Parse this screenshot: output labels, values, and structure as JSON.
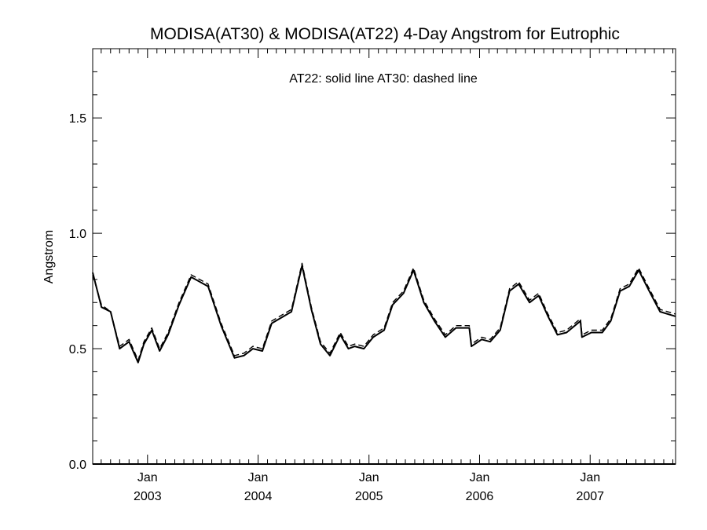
{
  "chart_data": {
    "type": "line",
    "title": "MODISA(AT30) & MODISA(AT22) 4-Day Angstrom for Eutrophic",
    "annotation": "AT22: solid line   AT30: dashed line",
    "xlabel": "",
    "ylabel": "Angstrom",
    "ylim": [
      0.0,
      1.8
    ],
    "xlim": [
      "2002-07-04",
      "2007-10-10"
    ],
    "y_ticks": [
      0.0,
      0.5,
      1.0,
      1.5
    ],
    "y_tick_labels": [
      "0.0",
      "0.5",
      "1.0",
      "1.5"
    ],
    "x_ticks": [
      {
        "date": "2003-01-01",
        "month": "Jan",
        "year": "2003"
      },
      {
        "date": "2004-01-01",
        "month": "Jan",
        "year": "2004"
      },
      {
        "date": "2005-01-01",
        "month": "Jan",
        "year": "2005"
      },
      {
        "date": "2006-01-01",
        "month": "Jan",
        "year": "2006"
      },
      {
        "date": "2007-01-01",
        "month": "Jan",
        "year": "2007"
      }
    ],
    "grid": false,
    "series": [
      {
        "name": "AT22",
        "style": "solid",
        "color": "#000000",
        "points": [
          [
            "2002-07-04",
            0.83
          ],
          [
            "2002-08-02",
            0.68
          ],
          [
            "2002-09-01",
            0.66
          ],
          [
            "2002-10-01",
            0.5
          ],
          [
            "2002-11-01",
            0.53
          ],
          [
            "2002-12-01",
            0.44
          ],
          [
            "2002-12-20",
            0.52
          ],
          [
            "2003-01-15",
            0.58
          ],
          [
            "2003-02-10",
            0.49
          ],
          [
            "2003-03-10",
            0.56
          ],
          [
            "2003-04-15",
            0.69
          ],
          [
            "2003-05-25",
            0.81
          ],
          [
            "2003-07-20",
            0.77
          ],
          [
            "2003-09-01",
            0.6
          ],
          [
            "2003-10-15",
            0.46
          ],
          [
            "2003-11-15",
            0.47
          ],
          [
            "2003-12-15",
            0.5
          ],
          [
            "2004-01-15",
            0.49
          ],
          [
            "2004-02-15",
            0.61
          ],
          [
            "2004-04-20",
            0.66
          ],
          [
            "2004-05-25",
            0.86
          ],
          [
            "2004-06-25",
            0.67
          ],
          [
            "2004-07-25",
            0.52
          ],
          [
            "2004-08-25",
            0.47
          ],
          [
            "2004-09-28",
            0.56
          ],
          [
            "2004-10-25",
            0.5
          ],
          [
            "2004-11-15",
            0.51
          ],
          [
            "2004-12-15",
            0.5
          ],
          [
            "2005-01-15",
            0.55
          ],
          [
            "2005-02-20",
            0.58
          ],
          [
            "2005-03-20",
            0.69
          ],
          [
            "2005-04-25",
            0.74
          ],
          [
            "2005-05-28",
            0.84
          ],
          [
            "2005-07-01",
            0.7
          ],
          [
            "2005-08-05",
            0.62
          ],
          [
            "2005-09-10",
            0.55
          ],
          [
            "2005-10-15",
            0.59
          ],
          [
            "2005-11-28",
            0.59
          ],
          [
            "2005-12-05",
            0.51
          ],
          [
            "2006-01-08",
            0.54
          ],
          [
            "2006-02-05",
            0.53
          ],
          [
            "2006-03-10",
            0.58
          ],
          [
            "2006-04-10",
            0.75
          ],
          [
            "2006-05-10",
            0.78
          ],
          [
            "2006-06-15",
            0.7
          ],
          [
            "2006-07-15",
            0.73
          ],
          [
            "2006-08-15",
            0.64
          ],
          [
            "2006-09-15",
            0.56
          ],
          [
            "2006-10-15",
            0.57
          ],
          [
            "2006-11-30",
            0.62
          ],
          [
            "2006-12-05",
            0.55
          ],
          [
            "2007-01-05",
            0.57
          ],
          [
            "2007-02-10",
            0.57
          ],
          [
            "2007-03-10",
            0.62
          ],
          [
            "2007-04-10",
            0.75
          ],
          [
            "2007-05-10",
            0.77
          ],
          [
            "2007-06-10",
            0.84
          ],
          [
            "2007-07-15",
            0.75
          ],
          [
            "2007-08-20",
            0.66
          ],
          [
            "2007-10-10",
            0.64
          ]
        ]
      },
      {
        "name": "AT30",
        "style": "dashed",
        "color": "#000000",
        "points": [
          [
            "2002-07-04",
            0.82
          ],
          [
            "2002-08-02",
            0.69
          ],
          [
            "2002-09-01",
            0.66
          ],
          [
            "2002-10-01",
            0.51
          ],
          [
            "2002-11-01",
            0.54
          ],
          [
            "2002-12-01",
            0.45
          ],
          [
            "2002-12-20",
            0.53
          ],
          [
            "2003-01-15",
            0.59
          ],
          [
            "2003-02-10",
            0.5
          ],
          [
            "2003-03-10",
            0.57
          ],
          [
            "2003-04-15",
            0.7
          ],
          [
            "2003-05-25",
            0.82
          ],
          [
            "2003-07-20",
            0.78
          ],
          [
            "2003-09-01",
            0.61
          ],
          [
            "2003-10-15",
            0.47
          ],
          [
            "2003-11-15",
            0.48
          ],
          [
            "2003-12-15",
            0.51
          ],
          [
            "2004-01-15",
            0.5
          ],
          [
            "2004-02-15",
            0.62
          ],
          [
            "2004-04-20",
            0.67
          ],
          [
            "2004-05-25",
            0.87
          ],
          [
            "2004-06-25",
            0.68
          ],
          [
            "2004-07-25",
            0.53
          ],
          [
            "2004-08-25",
            0.48
          ],
          [
            "2004-09-28",
            0.57
          ],
          [
            "2004-10-25",
            0.51
          ],
          [
            "2004-11-15",
            0.52
          ],
          [
            "2004-12-15",
            0.51
          ],
          [
            "2005-01-15",
            0.56
          ],
          [
            "2005-02-20",
            0.59
          ],
          [
            "2005-03-20",
            0.7
          ],
          [
            "2005-04-25",
            0.75
          ],
          [
            "2005-05-28",
            0.85
          ],
          [
            "2005-07-01",
            0.71
          ],
          [
            "2005-08-05",
            0.63
          ],
          [
            "2005-09-10",
            0.56
          ],
          [
            "2005-10-15",
            0.6
          ],
          [
            "2005-11-28",
            0.6
          ],
          [
            "2005-12-05",
            0.52
          ],
          [
            "2006-01-08",
            0.55
          ],
          [
            "2006-02-05",
            0.54
          ],
          [
            "2006-03-10",
            0.59
          ],
          [
            "2006-04-10",
            0.76
          ],
          [
            "2006-05-10",
            0.79
          ],
          [
            "2006-06-15",
            0.71
          ],
          [
            "2006-07-15",
            0.74
          ],
          [
            "2006-08-15",
            0.65
          ],
          [
            "2006-09-15",
            0.57
          ],
          [
            "2006-10-15",
            0.58
          ],
          [
            "2006-11-30",
            0.63
          ],
          [
            "2006-12-05",
            0.56
          ],
          [
            "2007-01-05",
            0.58
          ],
          [
            "2007-02-10",
            0.58
          ],
          [
            "2007-03-10",
            0.63
          ],
          [
            "2007-04-10",
            0.76
          ],
          [
            "2007-05-10",
            0.78
          ],
          [
            "2007-06-10",
            0.85
          ],
          [
            "2007-07-15",
            0.76
          ],
          [
            "2007-08-20",
            0.67
          ],
          [
            "2007-10-10",
            0.65
          ]
        ]
      }
    ]
  }
}
